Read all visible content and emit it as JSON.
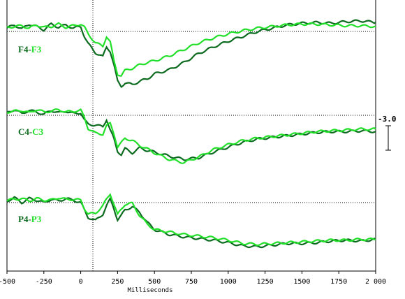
{
  "chart_data": {
    "type": "line",
    "xlabel": "Milliseconds",
    "xlim": [
      -500,
      2000
    ],
    "x_ticks": [
      "-500",
      "-250",
      "0",
      "250",
      "500",
      "750",
      "1000",
      "1250",
      "1500",
      "1750",
      "2 000"
    ],
    "scale_bar": "-3.0",
    "colors": {
      "left": "#0c6b1f",
      "right": "#22e02a"
    },
    "panels": [
      {
        "label_left": "F4",
        "label_sep": "-",
        "label_right": "F3",
        "x": [
          -500,
          -450,
          -400,
          -350,
          -300,
          -250,
          -200,
          -150,
          -100,
          -50,
          0,
          25,
          50,
          100,
          150,
          175,
          200,
          225,
          250,
          275,
          300,
          350,
          400,
          450,
          500,
          600,
          700,
          800,
          900,
          1000,
          1100,
          1200,
          1300,
          1400,
          1500,
          1600,
          1700,
          1800,
          1900,
          2000
        ],
        "left": [
          0.4,
          0.8,
          0.3,
          0.9,
          0.6,
          0.2,
          0.9,
          0.5,
          0.8,
          0.4,
          0.6,
          -0.6,
          -1.5,
          -2.6,
          -3.1,
          -1.9,
          -2.4,
          -4.1,
          -6.1,
          -6.7,
          -6.3,
          -6.5,
          -6.1,
          -5.8,
          -5.2,
          -4.7,
          -3.8,
          -2.7,
          -1.9,
          -1.2,
          -0.6,
          0.0,
          0.4,
          0.8,
          1.0,
          1.1,
          1.0,
          1.2,
          1.3,
          1.1
        ],
        "right": [
          0.5,
          0.6,
          0.7,
          0.4,
          0.8,
          0.5,
          0.6,
          0.9,
          0.5,
          0.7,
          0.9,
          0.5,
          -0.3,
          -1.4,
          -1.8,
          -0.6,
          -1.3,
          -3.6,
          -5.2,
          -5.4,
          -4.8,
          -4.5,
          -4.1,
          -3.8,
          -3.6,
          -3.0,
          -2.2,
          -1.4,
          -0.8,
          -0.3,
          0.1,
          0.4,
          0.6,
          0.8,
          0.9,
          0.9,
          0.8,
          0.7,
          0.7,
          0.6
        ]
      },
      {
        "label_left": "C4",
        "label_sep": "-",
        "label_right": "C3",
        "x": [
          -500,
          -450,
          -400,
          -350,
          -300,
          -250,
          -200,
          -150,
          -100,
          -50,
          0,
          25,
          50,
          100,
          150,
          175,
          200,
          225,
          250,
          275,
          300,
          350,
          400,
          450,
          500,
          600,
          700,
          800,
          900,
          1000,
          1100,
          1200,
          1300,
          1400,
          1500,
          1600,
          1700,
          1800,
          1900,
          2000
        ],
        "left": [
          0.3,
          0.7,
          0.2,
          0.6,
          0.4,
          0.1,
          0.6,
          0.3,
          0.5,
          0.2,
          0.3,
          -0.6,
          -1.1,
          -1.2,
          -1.4,
          -0.5,
          -1.8,
          -2.9,
          -4.4,
          -4.8,
          -4.1,
          -4.6,
          -4.0,
          -4.3,
          -4.5,
          -5.0,
          -5.4,
          -5.2,
          -4.5,
          -3.9,
          -3.3,
          -2.9,
          -2.7,
          -2.5,
          -2.3,
          -2.1,
          -2.0,
          -2.0,
          -1.9,
          -2.0
        ],
        "right": [
          0.4,
          0.5,
          0.6,
          0.3,
          0.7,
          0.4,
          0.5,
          0.7,
          0.4,
          0.5,
          0.6,
          -0.3,
          -1.6,
          -2.2,
          -2.3,
          -1.3,
          -1.0,
          -2.2,
          -3.9,
          -3.4,
          -2.8,
          -3.1,
          -3.7,
          -4.1,
          -4.6,
          -5.4,
          -5.8,
          -5.1,
          -4.2,
          -3.6,
          -3.1,
          -2.8,
          -2.6,
          -2.4,
          -2.2,
          -2.0,
          -1.9,
          -1.8,
          -1.7,
          -1.7
        ]
      },
      {
        "label_left": "P4",
        "label_sep": "-",
        "label_right": "P3",
        "x": [
          -500,
          -450,
          -400,
          -350,
          -300,
          -250,
          -200,
          -150,
          -100,
          -50,
          0,
          25,
          50,
          100,
          150,
          175,
          200,
          225,
          250,
          275,
          300,
          350,
          400,
          450,
          500,
          600,
          700,
          800,
          900,
          1000,
          1100,
          1200,
          1300,
          1400,
          1500,
          1600,
          1700,
          1800,
          1900,
          2000
        ],
        "left": [
          0.2,
          0.6,
          0.0,
          0.5,
          0.3,
          0.0,
          0.4,
          0.2,
          0.5,
          0.3,
          0.0,
          -0.9,
          -1.8,
          -2.2,
          -1.4,
          -0.4,
          0.4,
          -0.7,
          -2.1,
          -1.6,
          -0.9,
          -0.5,
          -1.2,
          -2.4,
          -3.3,
          -3.9,
          -4.2,
          -4.4,
          -4.6,
          -4.9,
          -5.3,
          -5.4,
          -5.2,
          -5.0,
          -5.0,
          -4.9,
          -4.7,
          -4.6,
          -4.7,
          -4.5
        ],
        "right": [
          0.3,
          0.4,
          0.5,
          0.2,
          0.5,
          0.3,
          0.3,
          0.6,
          0.4,
          0.4,
          0.3,
          -0.7,
          -1.4,
          -1.3,
          -0.4,
          0.4,
          1.1,
          -0.2,
          -1.5,
          -0.8,
          -0.2,
          -0.1,
          -1.6,
          -2.6,
          -3.3,
          -3.6,
          -3.9,
          -4.1,
          -4.3,
          -4.6,
          -5.0,
          -5.1,
          -5.0,
          -4.9,
          -4.8,
          -4.7,
          -4.6,
          -4.6,
          -4.5,
          -4.5
        ]
      }
    ]
  }
}
